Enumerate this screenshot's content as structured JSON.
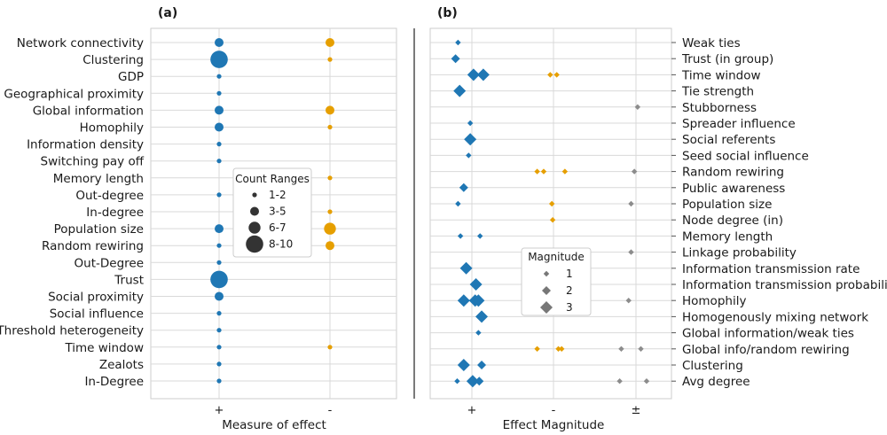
{
  "colors": {
    "positive": "#1f77b4",
    "negative": "#e69f00",
    "mixed": "#8c8c8c",
    "grid": "#d9d9d9",
    "frame": "#cccccc"
  },
  "panel_a": {
    "letter": "(a)",
    "xlabel": "Measure of effect",
    "xticks": [
      "+",
      "-"
    ],
    "legend": {
      "title": "Count Ranges",
      "items": [
        "1-2",
        "3-5",
        "6-7",
        "8-10"
      ]
    }
  },
  "panel_b": {
    "letter": "(b)",
    "xlabel": "Effect Magnitude",
    "xticks": [
      "+",
      "-",
      "±"
    ],
    "legend": {
      "title": "Magnitude",
      "items": [
        "1",
        "2",
        "3"
      ]
    }
  },
  "chart_data": [
    {
      "type": "scatter",
      "panel": "(a)",
      "xlabel": "Measure of effect",
      "x_categories": [
        "+",
        "-"
      ],
      "y_categories": [
        "Network connectivity",
        "Clustering",
        "GDP",
        "Geographical proximity",
        "Global information",
        "Homophily",
        "Information density",
        "Switching pay off",
        "Memory length",
        "Out-degree",
        "In-degree",
        "Population size",
        "Random rewiring",
        "Out-Degree",
        "Trust",
        "Social proximity",
        "Social influence",
        "Threshold heterogeneity",
        "Time window",
        "Zealots",
        "In-Degree"
      ],
      "size_legend": {
        "title": "Count Ranges",
        "ranges": [
          "1-2",
          "3-5",
          "6-7",
          "8-10"
        ]
      },
      "points": [
        {
          "y": "Network connectivity",
          "x": "+",
          "size_class": 2
        },
        {
          "y": "Network connectivity",
          "x": "-",
          "size_class": 2
        },
        {
          "y": "Clustering",
          "x": "+",
          "size_class": 4
        },
        {
          "y": "Clustering",
          "x": "-",
          "size_class": 1
        },
        {
          "y": "GDP",
          "x": "+",
          "size_class": 1
        },
        {
          "y": "Geographical proximity",
          "x": "+",
          "size_class": 1
        },
        {
          "y": "Global information",
          "x": "+",
          "size_class": 2
        },
        {
          "y": "Global information",
          "x": "-",
          "size_class": 2
        },
        {
          "y": "Homophily",
          "x": "+",
          "size_class": 2
        },
        {
          "y": "Homophily",
          "x": "-",
          "size_class": 1
        },
        {
          "y": "Information density",
          "x": "+",
          "size_class": 1
        },
        {
          "y": "Switching pay off",
          "x": "+",
          "size_class": 1
        },
        {
          "y": "Memory length",
          "x": "-",
          "size_class": 1
        },
        {
          "y": "Out-degree",
          "x": "+",
          "size_class": 1
        },
        {
          "y": "In-degree",
          "x": "-",
          "size_class": 1
        },
        {
          "y": "Population size",
          "x": "+",
          "size_class": 2
        },
        {
          "y": "Population size",
          "x": "-",
          "size_class": 3
        },
        {
          "y": "Random rewiring",
          "x": "+",
          "size_class": 1
        },
        {
          "y": "Random rewiring",
          "x": "-",
          "size_class": 2
        },
        {
          "y": "Out-Degree",
          "x": "+",
          "size_class": 1
        },
        {
          "y": "Trust",
          "x": "+",
          "size_class": 4
        },
        {
          "y": "Social proximity",
          "x": "+",
          "size_class": 2
        },
        {
          "y": "Social influence",
          "x": "+",
          "size_class": 1
        },
        {
          "y": "Threshold heterogeneity",
          "x": "+",
          "size_class": 1
        },
        {
          "y": "Time window",
          "x": "+",
          "size_class": 1
        },
        {
          "y": "Time window",
          "x": "-",
          "size_class": 1
        },
        {
          "y": "Zealots",
          "x": "+",
          "size_class": 1
        },
        {
          "y": "In-Degree",
          "x": "+",
          "size_class": 1
        }
      ]
    },
    {
      "type": "scatter",
      "panel": "(b)",
      "xlabel": "Effect Magnitude",
      "x_categories": [
        "+",
        "-",
        "±"
      ],
      "y_categories": [
        "Weak ties",
        "Trust (in group)",
        "Time window",
        "Tie strength",
        "Stubborness",
        "Spreader influence",
        "Social referents",
        "Seed social influence",
        "Random rewiring",
        "Public awareness",
        "Population size",
        "Node degree (in)",
        "Memory length",
        "Linkage probability",
        "Information transmission rate",
        "Information transmission probability",
        "Homophily",
        "Homogenously mixing network",
        "Global information/weak ties",
        "Global info/random rewiring",
        "Clustering",
        "Avg degree"
      ],
      "size_legend": {
        "title": "Magnitude",
        "levels": [
          1,
          2,
          3
        ]
      },
      "points": [
        {
          "y": "Weak ties",
          "x": "+",
          "offset": -0.17,
          "magnitude": 1
        },
        {
          "y": "Trust (in group)",
          "x": "+",
          "offset": -0.2,
          "magnitude": 2
        },
        {
          "y": "Time window",
          "x": "+",
          "offset": 0.02,
          "magnitude": 3
        },
        {
          "y": "Time window",
          "x": "+",
          "offset": 0.14,
          "magnitude": 3
        },
        {
          "y": "Time window",
          "x": "-",
          "offset": -0.04,
          "magnitude": 1
        },
        {
          "y": "Time window",
          "x": "-",
          "offset": 0.04,
          "magnitude": 1
        },
        {
          "y": "Tie strength",
          "x": "+",
          "offset": -0.15,
          "magnitude": 3
        },
        {
          "y": "Stubborness",
          "x": "±",
          "offset": 0.02,
          "magnitude": 1
        },
        {
          "y": "Spreader influence",
          "x": "+",
          "offset": -0.02,
          "magnitude": 1
        },
        {
          "y": "Social referents",
          "x": "+",
          "offset": -0.02,
          "magnitude": 3
        },
        {
          "y": "Seed social influence",
          "x": "+",
          "offset": -0.04,
          "magnitude": 1
        },
        {
          "y": "Random rewiring",
          "x": "-",
          "offset": -0.2,
          "magnitude": 1
        },
        {
          "y": "Random rewiring",
          "x": "-",
          "offset": -0.12,
          "magnitude": 1
        },
        {
          "y": "Random rewiring",
          "x": "-",
          "offset": 0.14,
          "magnitude": 1
        },
        {
          "y": "Random rewiring",
          "x": "±",
          "offset": -0.02,
          "magnitude": 1
        },
        {
          "y": "Public awareness",
          "x": "+",
          "offset": -0.1,
          "magnitude": 2
        },
        {
          "y": "Population size",
          "x": "+",
          "offset": -0.17,
          "magnitude": 1
        },
        {
          "y": "Population size",
          "x": "-",
          "offset": -0.02,
          "magnitude": 1
        },
        {
          "y": "Population size",
          "x": "±",
          "offset": -0.06,
          "magnitude": 1
        },
        {
          "y": "Node degree (in)",
          "x": "-",
          "offset": -0.01,
          "magnitude": 1
        },
        {
          "y": "Memory length",
          "x": "+",
          "offset": -0.14,
          "magnitude": 1
        },
        {
          "y": "Memory length",
          "x": "+",
          "offset": 0.1,
          "magnitude": 1
        },
        {
          "y": "Linkage probability",
          "x": "±",
          "offset": -0.06,
          "magnitude": 1
        },
        {
          "y": "Information transmission rate",
          "x": "+",
          "offset": -0.07,
          "magnitude": 3
        },
        {
          "y": "Information transmission probability",
          "x": "+",
          "offset": 0.05,
          "magnitude": 3
        },
        {
          "y": "Homophily",
          "x": "+",
          "offset": -0.1,
          "magnitude": 3
        },
        {
          "y": "Homophily",
          "x": "+",
          "offset": 0.04,
          "magnitude": 3
        },
        {
          "y": "Homophily",
          "x": "+",
          "offset": 0.08,
          "magnitude": 3
        },
        {
          "y": "Homophily",
          "x": "±",
          "offset": -0.09,
          "magnitude": 1
        },
        {
          "y": "Homogenously mixing network",
          "x": "+",
          "offset": 0.12,
          "magnitude": 3
        },
        {
          "y": "Global information/weak ties",
          "x": "+",
          "offset": 0.08,
          "magnitude": 1
        },
        {
          "y": "Global info/random rewiring",
          "x": "-",
          "offset": -0.2,
          "magnitude": 1
        },
        {
          "y": "Global info/random rewiring",
          "x": "-",
          "offset": 0.06,
          "magnitude": 1
        },
        {
          "y": "Global info/random rewiring",
          "x": "-",
          "offset": 0.1,
          "magnitude": 1
        },
        {
          "y": "Global info/random rewiring",
          "x": "±",
          "offset": -0.18,
          "magnitude": 1
        },
        {
          "y": "Global info/random rewiring",
          "x": "±",
          "offset": 0.06,
          "magnitude": 1
        },
        {
          "y": "Clustering",
          "x": "+",
          "offset": -0.1,
          "magnitude": 3
        },
        {
          "y": "Clustering",
          "x": "+",
          "offset": 0.12,
          "magnitude": 2
        },
        {
          "y": "Avg degree",
          "x": "+",
          "offset": -0.18,
          "magnitude": 1
        },
        {
          "y": "Avg degree",
          "x": "+",
          "offset": 0.01,
          "magnitude": 3
        },
        {
          "y": "Avg degree",
          "x": "+",
          "offset": 0.09,
          "magnitude": 2
        },
        {
          "y": "Avg degree",
          "x": "±",
          "offset": -0.2,
          "magnitude": 1
        },
        {
          "y": "Avg degree",
          "x": "±",
          "offset": 0.13,
          "magnitude": 1
        }
      ]
    }
  ]
}
